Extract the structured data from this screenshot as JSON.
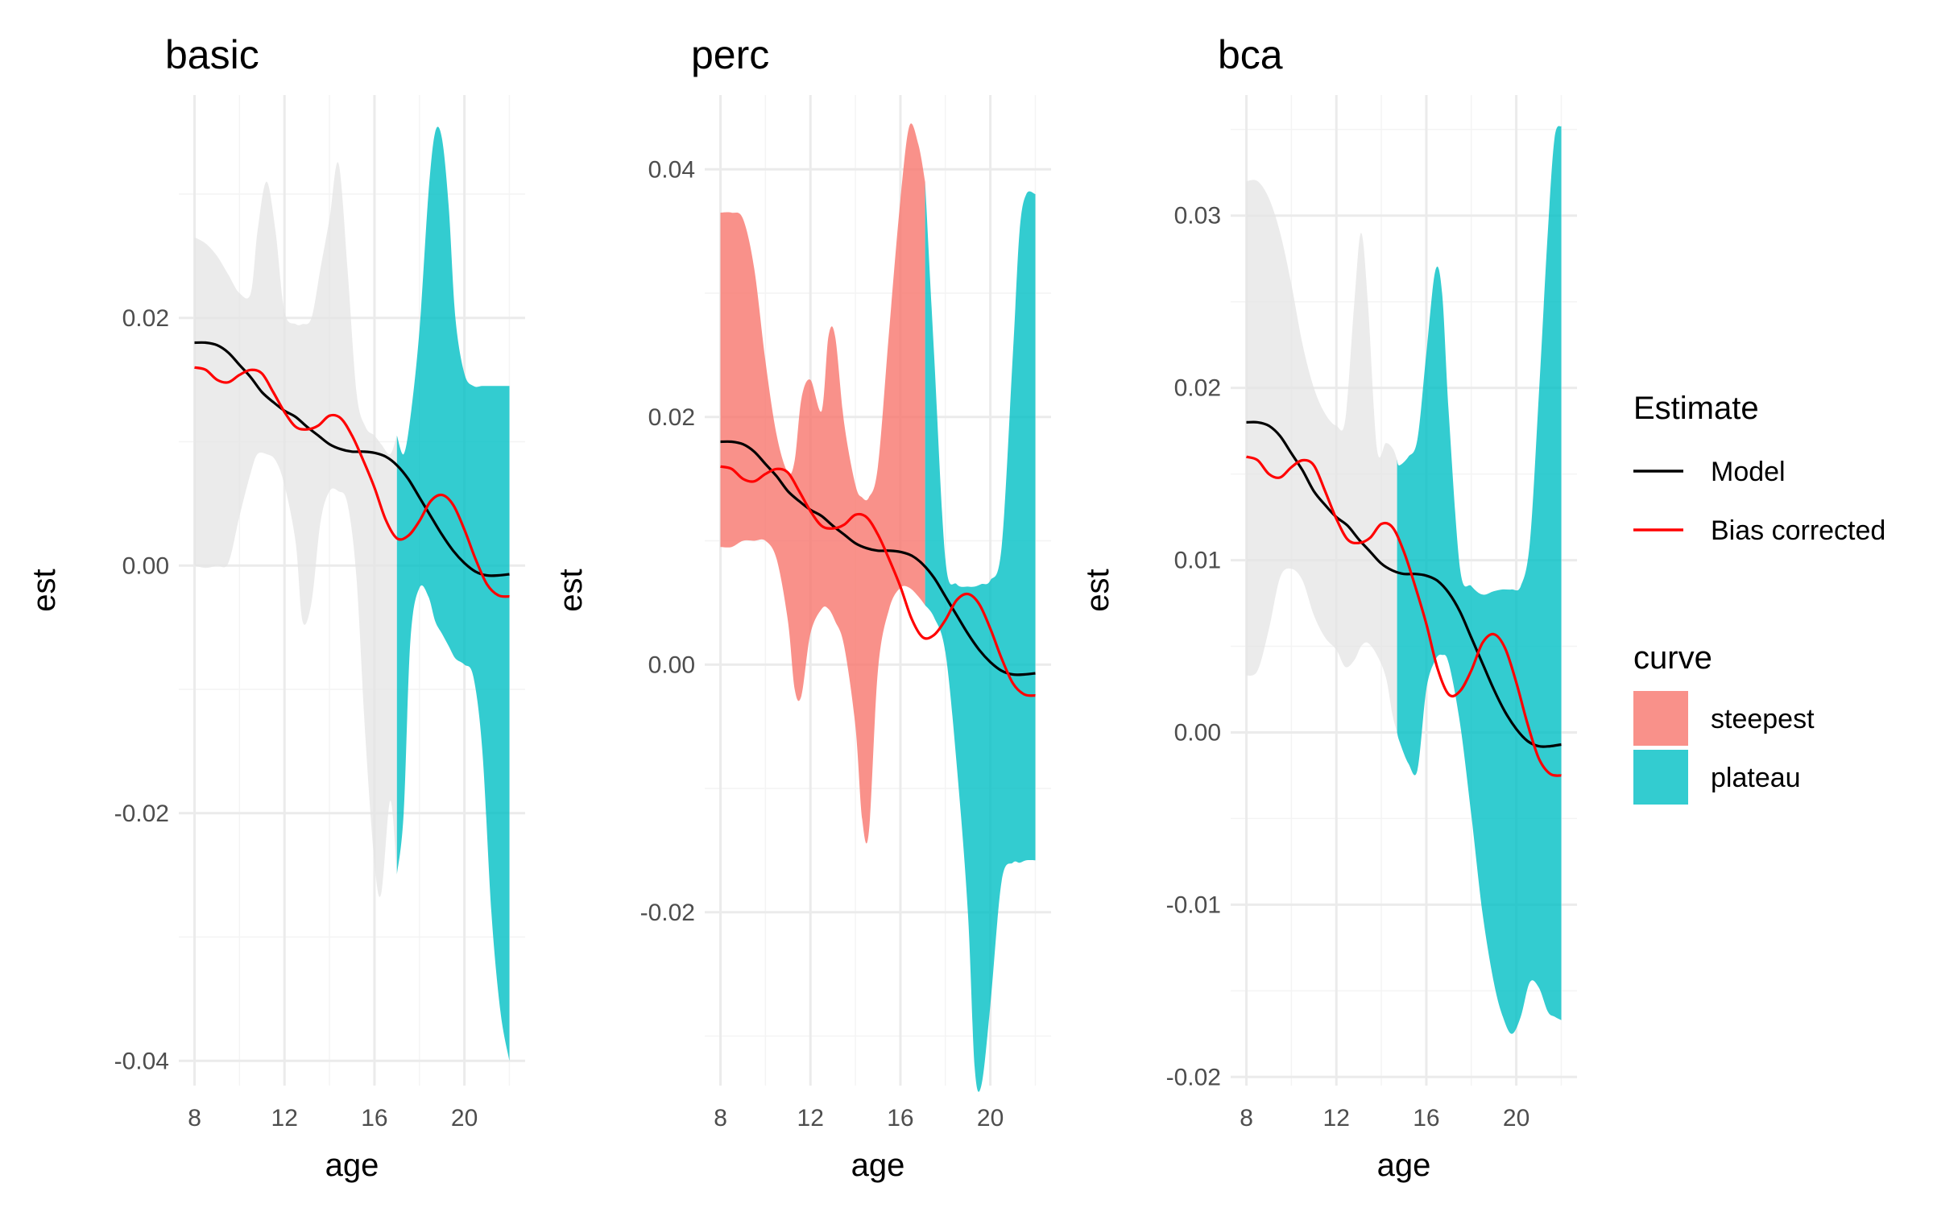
{
  "chart_data": {
    "type": "area",
    "x_label": "age",
    "y_label": "est",
    "x_ticks": [
      8,
      12,
      16,
      20
    ],
    "x_range": [
      7.3,
      22.7
    ],
    "grid": true,
    "colors": {
      "model": "#000000",
      "bias": "#ff0000",
      "steepest": "#f8766d",
      "plateau": "#00bfc4",
      "neutral": "#e4e4e4",
      "grid_major": "#ebebeb",
      "grid_minor": "#f4f4f4"
    },
    "legends": {
      "estimate": {
        "title": "Estimate",
        "items": [
          {
            "key": "model",
            "label": "Model"
          },
          {
            "key": "bias",
            "label": "Bias corrected"
          }
        ]
      },
      "curve": {
        "title": "curve",
        "items": [
          {
            "key": "steepest",
            "label": "steepest"
          },
          {
            "key": "plateau",
            "label": "plateau"
          }
        ]
      }
    },
    "series": {
      "model": {
        "name": "Model",
        "x": [
          8,
          8.5,
          9,
          9.5,
          10,
          10.5,
          11,
          11.5,
          12,
          12.5,
          13,
          13.5,
          14,
          14.5,
          15,
          15.5,
          16,
          16.5,
          17,
          17.5,
          18,
          18.5,
          19,
          19.5,
          20,
          20.5,
          21,
          21.5,
          22
        ],
        "y": [
          0.018,
          0.018,
          0.0178,
          0.0172,
          0.0162,
          0.0152,
          0.014,
          0.0132,
          0.0125,
          0.012,
          0.0112,
          0.0105,
          0.0098,
          0.0094,
          0.0092,
          0.0092,
          0.0091,
          0.0088,
          0.0081,
          0.007,
          0.0055,
          0.004,
          0.0025,
          0.0012,
          0.0002,
          -0.0005,
          -0.0008,
          -0.0008,
          -0.0007
        ]
      },
      "bias_corrected": {
        "name": "Bias corrected",
        "x": [
          8,
          8.5,
          9,
          9.5,
          10,
          10.5,
          11,
          11.5,
          12,
          12.5,
          13,
          13.5,
          14,
          14.5,
          15,
          15.5,
          16,
          16.5,
          17,
          17.5,
          18,
          18.5,
          19,
          19.5,
          20,
          20.5,
          21,
          21.5,
          22
        ],
        "y": [
          0.016,
          0.0158,
          0.015,
          0.0148,
          0.0154,
          0.0158,
          0.0155,
          0.014,
          0.0124,
          0.0112,
          0.011,
          0.0113,
          0.0121,
          0.0119,
          0.0105,
          0.0085,
          0.0063,
          0.0037,
          0.0022,
          0.0024,
          0.0036,
          0.0052,
          0.0057,
          0.0049,
          0.0029,
          0.0005,
          -0.0015,
          -0.0024,
          -0.0025
        ]
      }
    },
    "panels": [
      {
        "title": "basic",
        "y_range": [
          -0.042,
          0.038
        ],
        "y_ticks": [
          {
            "value": -0.04,
            "label": "-0.04"
          },
          {
            "value": -0.02,
            "label": "-0.02"
          },
          {
            "value": 0,
            "label": "0.00"
          },
          {
            "value": 0.02,
            "label": "0.02"
          }
        ],
        "ribbon": {
          "x": [
            8,
            8.5,
            9,
            9.5,
            10,
            10.5,
            10.8,
            11.2,
            11.6,
            12,
            12.5,
            12.8,
            13.2,
            13.6,
            14,
            14.4,
            14.8,
            15.2,
            15.6,
            16,
            16.3,
            16.7,
            17,
            17.3,
            17.6,
            18,
            18.4,
            18.7,
            19,
            19.3,
            19.6,
            20,
            20.4,
            20.8,
            21.2,
            21.6,
            22
          ],
          "upper": [
            0.0265,
            0.026,
            0.025,
            0.0235,
            0.022,
            0.022,
            0.027,
            0.031,
            0.027,
            0.0205,
            0.0195,
            0.0195,
            0.02,
            0.024,
            0.028,
            0.0325,
            0.024,
            0.014,
            0.0112,
            0.0105,
            0.0098,
            0.009,
            0.0105,
            0.009,
            0.012,
            0.019,
            0.03,
            0.035,
            0.0345,
            0.029,
            0.02,
            0.0155,
            0.0145,
            0.0145,
            0.0145,
            0.0145,
            0.0145
          ],
          "lower": [
            0,
            -0.0002,
            0,
            0.0002,
            0.004,
            0.0075,
            0.009,
            0.009,
            0.0085,
            0.0065,
            0.0018,
            -0.0045,
            -0.003,
            0.0035,
            0.006,
            0.006,
            0.005,
            -0.001,
            -0.014,
            -0.024,
            -0.0265,
            -0.019,
            -0.025,
            -0.02,
            -0.006,
            -0.0018,
            -0.0025,
            -0.0045,
            -0.0055,
            -0.0065,
            -0.0075,
            -0.008,
            -0.009,
            -0.015,
            -0.028,
            -0.036,
            -0.04
          ],
          "segments": [
            {
              "from": 8,
              "to": 17,
              "fill": "neutral"
            },
            {
              "from": 17,
              "to": 22,
              "fill": "plateau"
            }
          ]
        }
      },
      {
        "title": "perc",
        "y_range": [
          -0.034,
          0.046
        ],
        "y_ticks": [
          {
            "value": -0.02,
            "label": "-0.02"
          },
          {
            "value": 0,
            "label": "0.00"
          },
          {
            "value": 0.02,
            "label": "0.02"
          },
          {
            "value": 0.04,
            "label": "0.04"
          }
        ],
        "ribbon": {
          "x": [
            8,
            8.5,
            9,
            9.5,
            10,
            10.5,
            11,
            11.3,
            11.6,
            12,
            12.5,
            12.8,
            13.1,
            13.5,
            14,
            14.3,
            14.6,
            15,
            15.5,
            16,
            16.4,
            16.8,
            17.1,
            17.5,
            18,
            18.5,
            19,
            19.3,
            19.6,
            20,
            20.5,
            21,
            21.3,
            21.6,
            22
          ],
          "upper": [
            0.0365,
            0.0365,
            0.036,
            0.032,
            0.0245,
            0.0185,
            0.0155,
            0.0165,
            0.0215,
            0.023,
            0.0205,
            0.0265,
            0.0265,
            0.0195,
            0.0145,
            0.0135,
            0.0135,
            0.016,
            0.027,
            0.0375,
            0.0435,
            0.042,
            0.039,
            0.025,
            0.0085,
            0.0065,
            0.0063,
            0.0063,
            0.0065,
            0.0068,
            0.0095,
            0.025,
            0.035,
            0.038,
            0.038
          ],
          "lower": [
            0.0095,
            0.0095,
            0.01,
            0.01,
            0.01,
            0.0085,
            0.0035,
            -0.002,
            -0.0025,
            0.0025,
            0.0045,
            0.0045,
            0.0035,
            0.0015,
            -0.005,
            -0.0125,
            -0.0135,
            -0.0005,
            0.0045,
            0.0062,
            0.0062,
            0.0055,
            0.0048,
            0.0038,
            0.001,
            -0.008,
            -0.02,
            -0.0325,
            -0.034,
            -0.0275,
            -0.0175,
            -0.016,
            -0.016,
            -0.0158,
            -0.0158
          ],
          "segments": [
            {
              "from": 8,
              "to": 17.1,
              "fill": "steepest"
            },
            {
              "from": 17.1,
              "to": 22,
              "fill": "plateau"
            }
          ]
        }
      },
      {
        "title": "bca",
        "y_range": [
          -0.0205,
          0.037
        ],
        "y_ticks": [
          {
            "value": -0.02,
            "label": "-0.02"
          },
          {
            "value": -0.01,
            "label": "-0.01"
          },
          {
            "value": 0,
            "label": "0.00"
          },
          {
            "value": 0.01,
            "label": "0.01"
          },
          {
            "value": 0.02,
            "label": "0.02"
          },
          {
            "value": 0.03,
            "label": "0.03"
          }
        ],
        "ribbon": {
          "x": [
            8,
            8.5,
            9,
            9.5,
            10,
            10.5,
            11,
            11.5,
            12,
            12.4,
            12.8,
            13.1,
            13.4,
            13.8,
            14.2,
            14.5,
            14.8,
            15.2,
            15.6,
            16,
            16.4,
            16.7,
            17,
            17.5,
            18,
            18.5,
            19,
            19.4,
            19.8,
            20.2,
            20.6,
            21,
            21.4,
            21.7,
            22
          ],
          "upper": [
            0.032,
            0.032,
            0.031,
            0.029,
            0.026,
            0.0225,
            0.02,
            0.0185,
            0.0178,
            0.0182,
            0.025,
            0.029,
            0.025,
            0.0165,
            0.0168,
            0.0165,
            0.0155,
            0.016,
            0.017,
            0.022,
            0.0268,
            0.0255,
            0.0185,
            0.0095,
            0.0085,
            0.008,
            0.0082,
            0.0083,
            0.0083,
            0.0085,
            0.011,
            0.0195,
            0.029,
            0.0345,
            0.0352
          ],
          "lower": [
            0.0033,
            0.0036,
            0.006,
            0.009,
            0.0095,
            0.0088,
            0.0068,
            0.0055,
            0.0048,
            0.0038,
            0.0042,
            0.005,
            0.0052,
            0.0045,
            0.0032,
            0.001,
            -0.0005,
            -0.0018,
            -0.0022,
            0.0025,
            0.0042,
            0.0045,
            0.004,
            0.0005,
            -0.0048,
            -0.0105,
            -0.0145,
            -0.0165,
            -0.0175,
            -0.0165,
            -0.0145,
            -0.0148,
            -0.0162,
            -0.0165,
            -0.0167
          ],
          "segments": [
            {
              "from": 8,
              "to": 14.7,
              "fill": "neutral"
            },
            {
              "from": 14.7,
              "to": 22,
              "fill": "plateau"
            }
          ]
        }
      }
    ]
  }
}
